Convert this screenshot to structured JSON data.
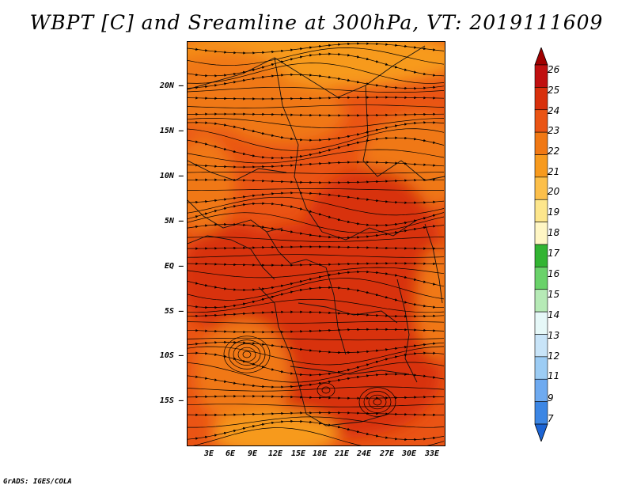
{
  "title": "WBPT [C] and Sreamline at 300hPa, VT: 2019111609",
  "credit": "GrADS: IGES/COLA",
  "lat_labels": [
    "20N",
    "15N",
    "10N",
    "5N",
    "EQ",
    "5S",
    "10S",
    "15S"
  ],
  "lon_labels": [
    "3E",
    "6E",
    "9E",
    "12E",
    "15E",
    "18E",
    "21E",
    "24E",
    "27E",
    "30E",
    "33E"
  ],
  "colorbar": {
    "labels": [
      "26",
      "25",
      "24",
      "23",
      "22",
      "21",
      "20",
      "19",
      "18",
      "17",
      "16",
      "15",
      "14",
      "13",
      "12",
      "11",
      "9",
      "7"
    ],
    "colors": [
      "#a00000",
      "#c01010",
      "#d8300c",
      "#ea5414",
      "#f07814",
      "#f79a1e",
      "#fcbf4a",
      "#fde68c",
      "#fff6c4",
      "#32b432",
      "#6ad26a",
      "#b6eab6",
      "#e6f8f8",
      "#c8e4f8",
      "#9cccf4",
      "#6eaaf0",
      "#3c86e4",
      "#1c64d4"
    ]
  },
  "colors": {
    "background": "#ffffff",
    "field_dominant": "#ea5414",
    "field_warm": "#d8300c",
    "field_cool": "#f79a1e"
  }
}
